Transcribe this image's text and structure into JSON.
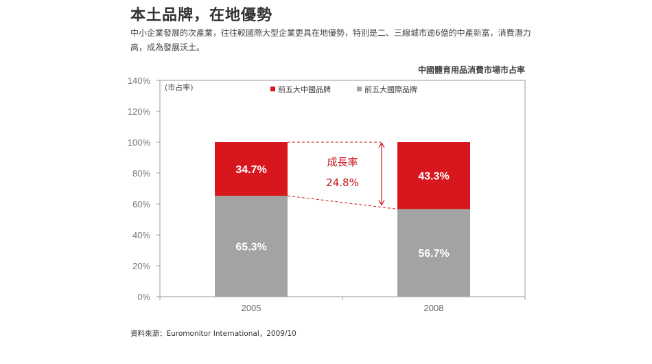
{
  "heading": {
    "title": "本土品牌，在地優勢",
    "description": "中小企業發展的次產業，往往較國際大型企業更具在地優勢，特別是二、三線城市逾6億的中產新富，消費潛力高，成為發展沃土。"
  },
  "source": "資料來源：Euromonitor International，2009/10",
  "chart_data": {
    "type": "bar",
    "stacked": true,
    "title": "中國體育用品消費市場市占率",
    "unit_label": "(市占率)",
    "categories": [
      "2005",
      "2008"
    ],
    "series": [
      {
        "name": "前五大國際品牌",
        "values": [
          65.3,
          56.7
        ],
        "labels": [
          "65.3%",
          "56.7%"
        ],
        "color": "#a3a3a3"
      },
      {
        "name": "前五大中國品牌",
        "values": [
          34.7,
          43.3
        ],
        "labels": [
          "34.7%",
          "43.3%"
        ],
        "color": "#d7161d"
      }
    ],
    "legend_order": [
      1,
      0
    ],
    "y_ticks": [
      "0%",
      "20%",
      "40%",
      "60%",
      "80%",
      "100%",
      "120%",
      "140%"
    ],
    "ylim": [
      0,
      140
    ],
    "legend_position": "top",
    "grid": false,
    "annotation": {
      "label": "成長率",
      "value": "24.8%",
      "color": "#c8161d"
    }
  }
}
